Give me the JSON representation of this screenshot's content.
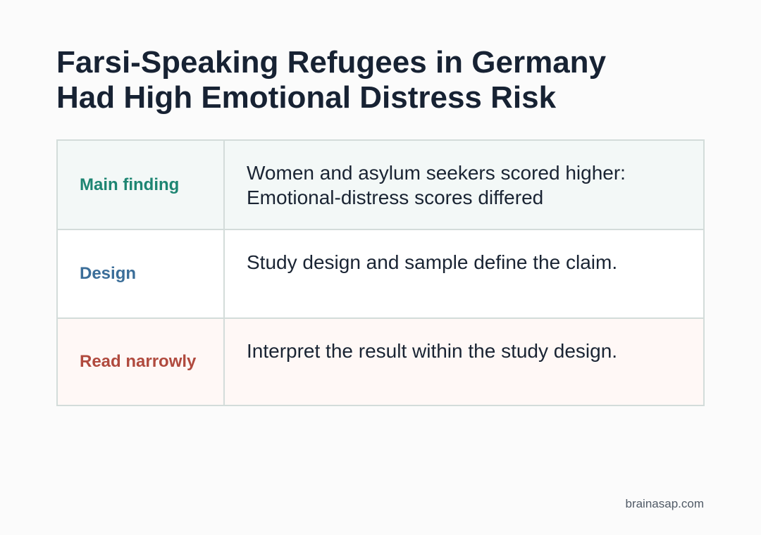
{
  "title": {
    "line1": "Farsi-Speaking Refugees in Germany",
    "line2": "Had High Emotional Distress Risk"
  },
  "rows": [
    {
      "label": "Main finding",
      "lines": [
        "Women and asylum seekers scored higher:",
        "Emotional-distress scores differed"
      ],
      "label_color": "#1d8572",
      "background": "#f3f8f7"
    },
    {
      "label": "Design",
      "lines": [
        "Study design and sample define the claim."
      ],
      "label_color": "#3b6e99",
      "background": "#ffffff"
    },
    {
      "label": "Read narrowly",
      "lines": [
        "Interpret the result within the study design."
      ],
      "label_color": "#b04a3e",
      "background": "#fff8f6"
    }
  ],
  "footer": "brainasap.com"
}
